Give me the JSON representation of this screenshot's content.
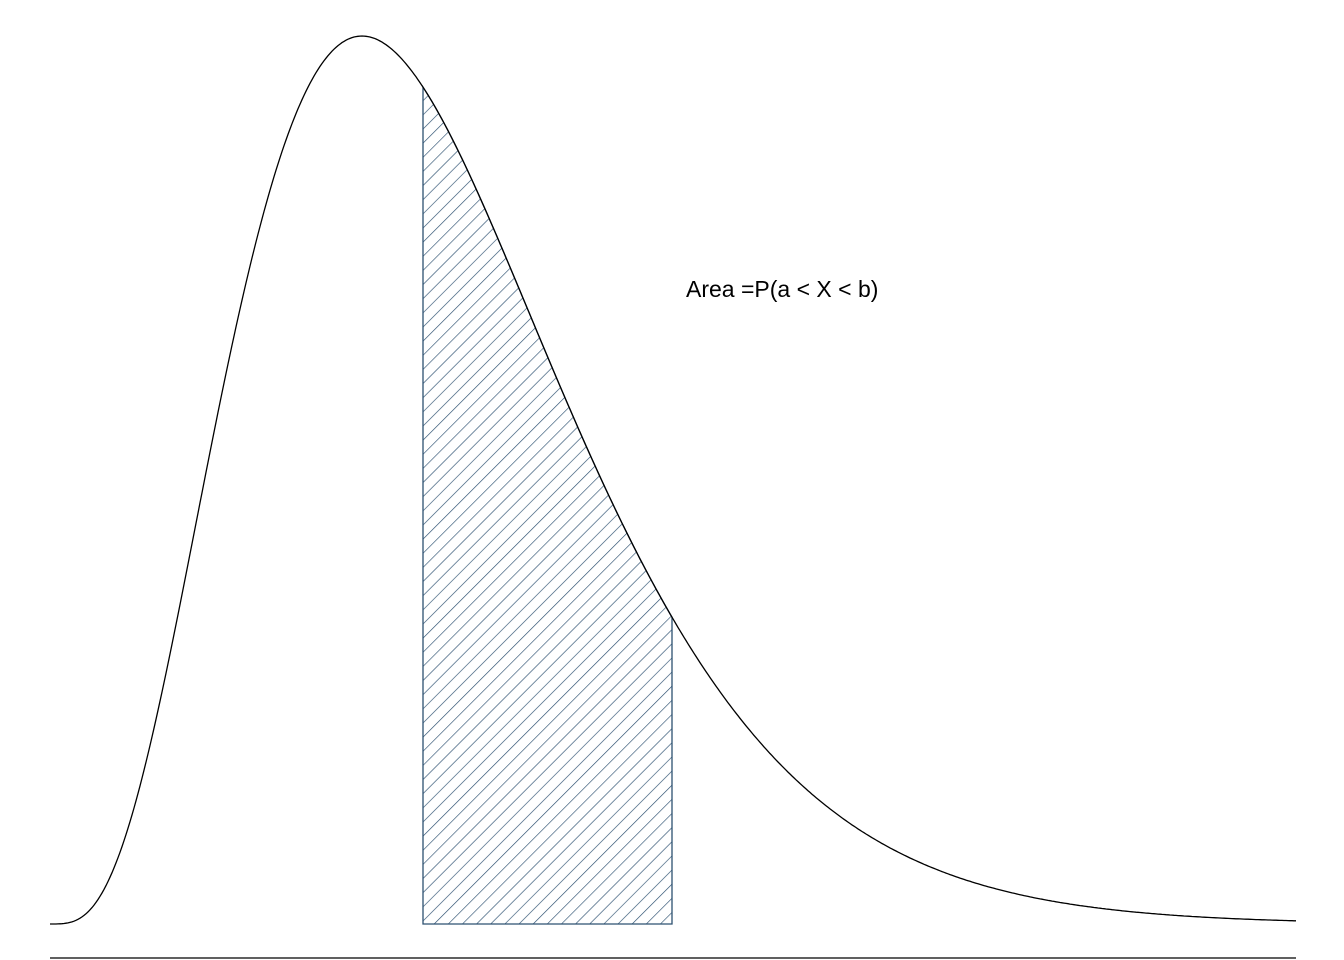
{
  "annotation": {
    "area_label": "Area =P(a < X < b)"
  },
  "chart_data": {
    "type": "area",
    "title": "",
    "xlabel": "",
    "ylabel": "",
    "distribution_shape": "right-skewed unimodal density curve",
    "shaded_region": {
      "from": "a",
      "to": "b",
      "fill": "diagonal hatch"
    }
  },
  "colors": {
    "curve": "#000000",
    "hatch": "#2c5070",
    "baseline": "#000000",
    "background": "#ffffff"
  }
}
